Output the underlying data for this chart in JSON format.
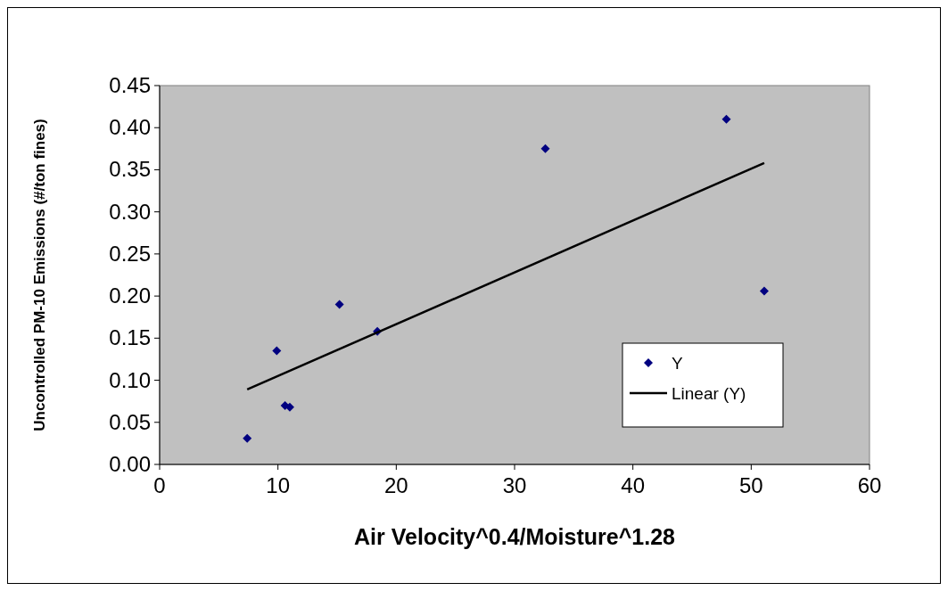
{
  "chart_data": {
    "type": "scatter",
    "xlabel": "Air Velocity^0.4/Moisture^1.28",
    "ylabel": "Uncontrolled PM-10 Emissions (#/ton fines)",
    "xlim": [
      0,
      60
    ],
    "xticks": [
      0,
      10,
      20,
      30,
      40,
      50,
      60
    ],
    "ylim": [
      0,
      0.45
    ],
    "yticks": [
      {
        "value": 0,
        "label": "0.00"
      },
      {
        "value": 0.05,
        "label": "0.05"
      },
      {
        "value": 0.1,
        "label": "0.10"
      },
      {
        "value": 0.15,
        "label": "0.15"
      },
      {
        "value": 0.2,
        "label": "0.20"
      },
      {
        "value": 0.25,
        "label": "0.25"
      },
      {
        "value": 0.3,
        "label": "0.30"
      },
      {
        "value": 0.35,
        "label": "0.35"
      },
      {
        "value": 0.4,
        "label": "0.40"
      },
      {
        "value": 0.45,
        "label": "0.45"
      }
    ],
    "grid": false,
    "legend": "bottom right",
    "marker": "diamond",
    "series": [
      {
        "name": "Y",
        "color": "#000080",
        "x": [
          7.4,
          9.9,
          10.6,
          11.0,
          15.2,
          18.4,
          32.6,
          47.9,
          51.1
        ],
        "values": [
          0.031,
          0.135,
          0.07,
          0.068,
          0.19,
          0.158,
          0.375,
          0.41,
          0.206
        ]
      },
      {
        "name": "Linear (Y)",
        "type": "line",
        "color": "#000000",
        "line_style": "solid",
        "marker": "none",
        "x": [
          7.4,
          51.1
        ],
        "values": [
          0.089,
          0.358
        ]
      }
    ]
  }
}
